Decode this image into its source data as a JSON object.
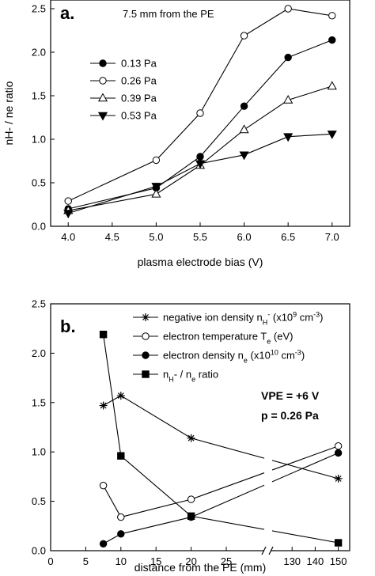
{
  "chart_data": [
    {
      "type": "line",
      "panel_label": "a.",
      "annotation": "7.5 mm from the PE",
      "xlabel": "plasma electrode bias (V)",
      "ylabel": "nH- / ne ratio",
      "xlim": [
        3.8,
        7.2
      ],
      "ylim": [
        0,
        2.6
      ],
      "x_ticks": [
        "4.0",
        "4.5",
        "5.0",
        "5.5",
        "6.0",
        "6.5",
        "7.0"
      ],
      "y_ticks": [
        "0.0",
        "0.5",
        "1.0",
        "1.5",
        "2.0",
        "2.5"
      ],
      "legend_position": "left",
      "series": [
        {
          "name": "0.13 Pa",
          "marker": "filled-circle",
          "x": [
            4.0,
            5.0,
            5.5,
            6.0,
            6.5,
            7.0
          ],
          "y": [
            0.2,
            0.44,
            0.8,
            1.38,
            1.94,
            2.14
          ]
        },
        {
          "name": "0.26 Pa",
          "marker": "open-circle",
          "x": [
            4.0,
            5.0,
            5.5,
            6.0,
            6.5,
            7.0
          ],
          "y": [
            0.29,
            0.76,
            1.3,
            2.19,
            2.5,
            2.42
          ]
        },
        {
          "name": "0.39 Pa",
          "marker": "open-triangle-up",
          "x": [
            4.0,
            5.0,
            5.5,
            6.0,
            6.5,
            7.0
          ],
          "y": [
            0.18,
            0.37,
            0.7,
            1.11,
            1.45,
            1.61
          ]
        },
        {
          "name": "0.53 Pa",
          "marker": "filled-triangle-down",
          "x": [
            4.0,
            5.0,
            5.5,
            6.0,
            6.5,
            7.0
          ],
          "y": [
            0.15,
            0.46,
            0.72,
            0.82,
            1.03,
            1.06
          ]
        }
      ]
    },
    {
      "type": "line",
      "panel_label": "b.",
      "annotation_vpe": "VPE = +6 V",
      "annotation_p": "p = 0.26 Pa",
      "xlabel": "distance from the PE (mm)",
      "ylim": [
        0,
        2.5
      ],
      "x_ticks": [
        "0",
        "5",
        "10",
        "15",
        "20",
        "25",
        "130",
        "140",
        "150"
      ],
      "y_ticks": [
        "0.0",
        "0.5",
        "1.0",
        "1.5",
        "2.0",
        "2.5"
      ],
      "x_axis_break": "between 25 and 130",
      "legend_position": "top-right",
      "series": [
        {
          "name": "negative ion density nH- (x10^9 cm^-3)",
          "marker": "asterisk",
          "x": [
            7.5,
            10,
            20,
            150
          ],
          "y": [
            1.47,
            1.57,
            1.14,
            0.73
          ]
        },
        {
          "name": "electron temperature Te (eV)",
          "marker": "open-circle",
          "x": [
            7.5,
            10,
            20,
            150
          ],
          "y": [
            0.66,
            0.34,
            0.52,
            1.06
          ]
        },
        {
          "name": "electron density ne (x10^10 cm^-3)",
          "marker": "filled-circle",
          "x": [
            7.5,
            10,
            20,
            150
          ],
          "y": [
            0.07,
            0.17,
            0.34,
            0.99
          ]
        },
        {
          "name": "nH- / ne ratio",
          "marker": "filled-square",
          "x": [
            7.5,
            10,
            20,
            150
          ],
          "y": [
            2.19,
            0.96,
            0.35,
            0.08
          ]
        }
      ]
    }
  ]
}
